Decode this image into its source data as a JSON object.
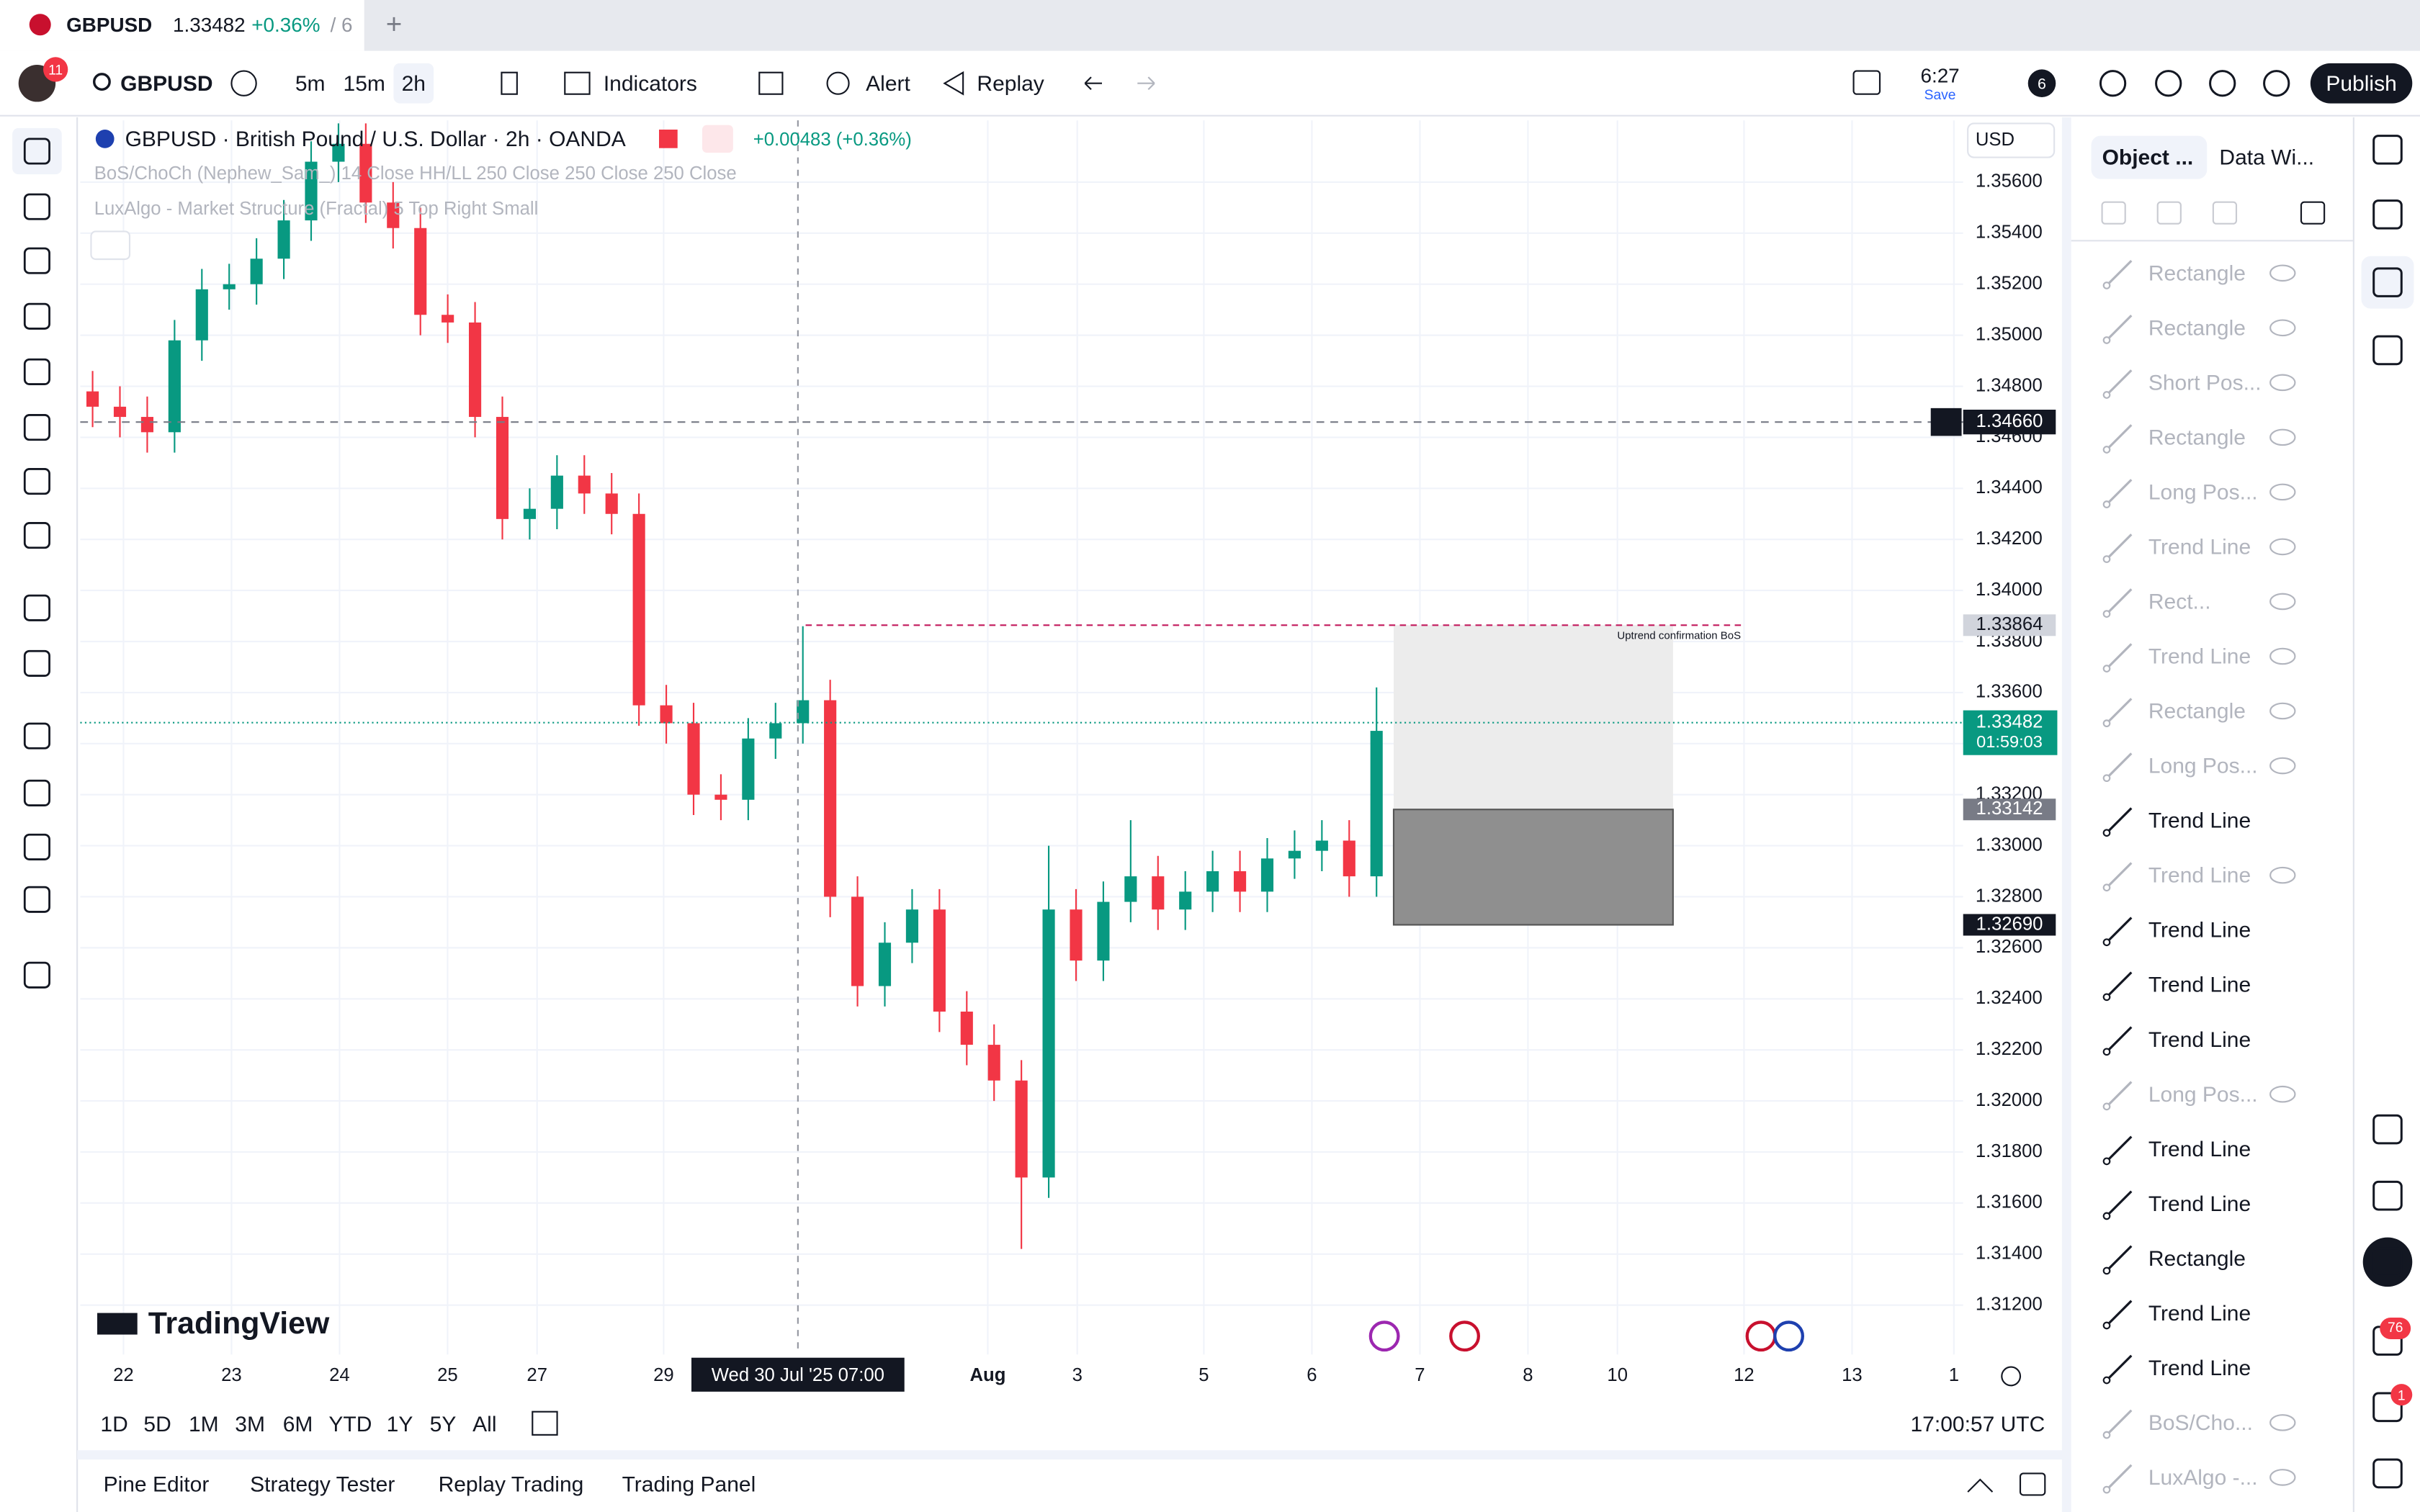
{
  "tab": {
    "symbol": "GBPUSD",
    "price": "1.33482",
    "change": "+0.36%",
    "suffix": "/ 6"
  },
  "header": {
    "badge": "11",
    "symbol": "GBPUSD",
    "intervals": [
      "5m",
      "15m",
      "2h"
    ],
    "indicators": "Indicators",
    "alert": "Alert",
    "replay": "Replay",
    "time": "6:27",
    "save": "Save",
    "count": "6",
    "publish": "Publish"
  },
  "legend": {
    "title": "GBPUSD · British Pound / U.S. Dollar · 2h · OANDA",
    "change": "+0.00483 (+0.36%)",
    "indicator_1": "BoS/ChoCh (Nephew_Sam_) 14 Close HH/LL 250 Close 250 Close 250 Close",
    "indicator_2": "LuxAlgo - Market Structure (Fractal) 5 Top Right Small"
  },
  "currency": "USD",
  "chart_data": {
    "type": "candlestick",
    "open": [
      1.3478,
      1.3472,
      1.3468,
      1.3462,
      1.3498,
      1.3518,
      1.352,
      1.353,
      1.3545,
      1.3568,
      1.3575,
      1.3552,
      1.3542,
      1.3508,
      1.3505,
      1.3468,
      1.3428,
      1.3432,
      1.3445,
      1.3438,
      1.343,
      1.3355,
      1.3348,
      1.332,
      1.3318,
      1.3342,
      1.3348,
      1.3357,
      1.328,
      1.3245,
      1.3262,
      1.3275,
      1.3235,
      1.3222,
      1.3208,
      1.317,
      1.3275,
      1.3255,
      1.3278,
      1.3288,
      1.3275,
      1.3282,
      1.329,
      1.3282,
      1.3295,
      1.3298,
      1.3302,
      1.3288
    ],
    "high": [
      1.3486,
      1.348,
      1.3476,
      1.3506,
      1.3526,
      1.3528,
      1.3538,
      1.3553,
      1.3576,
      1.3583,
      1.3583,
      1.356,
      1.355,
      1.3516,
      1.3513,
      1.3476,
      1.344,
      1.3453,
      1.3453,
      1.3446,
      1.3438,
      1.3363,
      1.3356,
      1.3328,
      1.335,
      1.3356,
      1.3386,
      1.3365,
      1.3288,
      1.327,
      1.3283,
      1.3283,
      1.3243,
      1.323,
      1.3216,
      1.33,
      1.3283,
      1.3286,
      1.331,
      1.3296,
      1.329,
      1.3298,
      1.3298,
      1.3303,
      1.3306,
      1.331,
      1.331,
      1.3362
    ],
    "low": [
      1.3464,
      1.346,
      1.3454,
      1.3454,
      1.349,
      1.351,
      1.3512,
      1.3522,
      1.3537,
      1.356,
      1.3544,
      1.3534,
      1.35,
      1.3497,
      1.346,
      1.342,
      1.342,
      1.3424,
      1.343,
      1.3422,
      1.3347,
      1.334,
      1.3312,
      1.331,
      1.331,
      1.3334,
      1.334,
      1.3272,
      1.3237,
      1.3237,
      1.3254,
      1.3227,
      1.3214,
      1.32,
      1.3142,
      1.3162,
      1.3247,
      1.3247,
      1.327,
      1.3267,
      1.3267,
      1.3274,
      1.3274,
      1.3274,
      1.3287,
      1.329,
      1.328,
      1.328
    ],
    "close": [
      1.3472,
      1.3468,
      1.3462,
      1.3498,
      1.3518,
      1.352,
      1.353,
      1.3545,
      1.3568,
      1.3575,
      1.3552,
      1.3542,
      1.3508,
      1.3505,
      1.3468,
      1.3428,
      1.3432,
      1.3445,
      1.3438,
      1.343,
      1.3355,
      1.3348,
      1.332,
      1.3318,
      1.3342,
      1.3348,
      1.3357,
      1.328,
      1.3245,
      1.3262,
      1.3275,
      1.3235,
      1.3222,
      1.3208,
      1.317,
      1.3275,
      1.3255,
      1.3278,
      1.3288,
      1.3275,
      1.3282,
      1.329,
      1.3282,
      1.3295,
      1.3298,
      1.3302,
      1.3288,
      1.3345
    ],
    "up_color": "#089981",
    "down_color": "#f23645",
    "ylim": [
      1.31006,
      1.35842
    ],
    "yticks": [
      {
        "value": 1.356,
        "label": "1.35600"
      },
      {
        "value": 1.354,
        "label": "1.35400"
      },
      {
        "value": 1.352,
        "label": "1.35200"
      },
      {
        "value": 1.35,
        "label": "1.35000"
      },
      {
        "value": 1.348,
        "label": "1.34800"
      },
      {
        "value": 1.346,
        "label": "1.34600"
      },
      {
        "value": 1.344,
        "label": "1.34400"
      },
      {
        "value": 1.342,
        "label": "1.34200"
      },
      {
        "value": 1.34,
        "label": "1.34000"
      },
      {
        "value": 1.338,
        "label": "1.33800"
      },
      {
        "value": 1.336,
        "label": "1.33600"
      },
      {
        "value": 1.334,
        "label": "1.33400"
      },
      {
        "value": 1.332,
        "label": "1.33200"
      },
      {
        "value": 1.33,
        "label": "1.33000"
      },
      {
        "value": 1.328,
        "label": "1.32800"
      },
      {
        "value": 1.326,
        "label": "1.32600"
      },
      {
        "value": 1.324,
        "label": "1.32400"
      },
      {
        "value": 1.322,
        "label": "1.32200"
      },
      {
        "value": 1.32,
        "label": "1.32000"
      },
      {
        "value": 1.318,
        "label": "1.31800"
      },
      {
        "value": 1.316,
        "label": "1.31600"
      },
      {
        "value": 1.314,
        "label": "1.31400"
      },
      {
        "value": 1.312,
        "label": "1.31200"
      }
    ],
    "grid": true,
    "categories": [
      "22",
      "23",
      "24",
      "25",
      "27",
      "29",
      "Aug",
      "3",
      "5",
      "6",
      "7",
      "8",
      "10",
      "12",
      "13",
      "1"
    ],
    "crosshair": {
      "date": "Wed 30 Jul '25  07:00",
      "price": {
        "value": 1.3466,
        "label": "1.34660"
      }
    },
    "last_price": {
      "value": 1.33482,
      "label": "1.33482",
      "countdown": "01:59:03"
    },
    "position": {
      "target": {
        "value": 1.33864,
        "label": "1.33864"
      },
      "entry": {
        "value": 1.33142,
        "label": "1.33142"
      },
      "stop": {
        "value": 1.3269,
        "label": "1.32690"
      }
    },
    "annotation": "Uptrend confirmation BoS"
  },
  "logo": "TradingView",
  "ranges": [
    "1D",
    "5D",
    "1M",
    "3M",
    "6M",
    "YTD",
    "1Y",
    "5Y",
    "All"
  ],
  "clock": "17:00:57 UTC",
  "bottom_tabs": [
    "Pine Editor",
    "Strategy Tester",
    "Replay Trading",
    "Trading Panel"
  ],
  "objects_panel": {
    "tabs": [
      "Object ...",
      "Data Wi..."
    ],
    "items": [
      {
        "label": "Rectangle",
        "hidden": true
      },
      {
        "label": "Rectangle",
        "hidden": true
      },
      {
        "label": "Short Pos...",
        "hidden": true
      },
      {
        "label": "Rectangle",
        "hidden": true
      },
      {
        "label": "Long Pos...",
        "hidden": true
      },
      {
        "label": "Trend Line",
        "hidden": true
      },
      {
        "label": "Rect...",
        "hidden": true
      },
      {
        "label": "Trend Line",
        "hidden": true
      },
      {
        "label": "Rectangle",
        "hidden": true
      },
      {
        "label": "Long Pos...",
        "hidden": true
      },
      {
        "label": "Trend Line",
        "hidden": false
      },
      {
        "label": "Trend Line",
        "hidden": true
      },
      {
        "label": "Trend Line",
        "hidden": false
      },
      {
        "label": "Trend Line",
        "hidden": false
      },
      {
        "label": "Trend Line",
        "hidden": false
      },
      {
        "label": "Long Pos...",
        "hidden": true
      },
      {
        "label": "Trend Line",
        "hidden": false
      },
      {
        "label": "Trend Line",
        "hidden": false
      },
      {
        "label": "Rectangle",
        "hidden": false
      },
      {
        "label": "Trend Line",
        "hidden": false
      },
      {
        "label": "Trend Line",
        "hidden": false
      },
      {
        "label": "BoS/Cho...",
        "hidden": true
      },
      {
        "label": "LuxAlgo -...",
        "hidden": true
      }
    ]
  },
  "sidebar_badges": [
    "76",
    "1"
  ]
}
